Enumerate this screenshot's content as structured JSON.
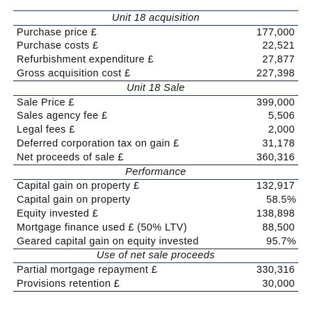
{
  "sections": [
    {
      "title": "Unit 18 acquisition",
      "rows": [
        [
          "Purchase price £",
          "177,000"
        ],
        [
          "Purchase costs £",
          "22,521"
        ],
        [
          "Refurbishment expenditure £",
          "27,877"
        ],
        [
          "Gross acquisition cost £",
          "227,398"
        ]
      ]
    },
    {
      "title": "Unit 18 Sale",
      "rows": [
        [
          "Sale Price £",
          "399,000"
        ],
        [
          "Sales agency fee £",
          "5,506"
        ],
        [
          "Legal fees £",
          "2,000"
        ],
        [
          "Deferred corporation tax on gain £",
          "31,178"
        ],
        [
          "Net proceeds of sale £",
          "360,316"
        ]
      ]
    },
    {
      "title": "Performance",
      "rows": [
        [
          "Capital gain on property £",
          "132,917"
        ],
        [
          "Capital gain on property",
          "58.5%"
        ],
        [
          "Equity invested £",
          "138,898"
        ],
        [
          "Mortgage finance used £ (50% LTV)",
          "88,500"
        ],
        [
          "Geared capital gain on equity invested",
          "95.7%"
        ]
      ]
    },
    {
      "title": "Use of net sale proceeds",
      "rows": [
        [
          "Partial mortgage repayment £",
          "330,316"
        ],
        [
          "Provisions retention £",
          "30,000"
        ]
      ]
    }
  ]
}
